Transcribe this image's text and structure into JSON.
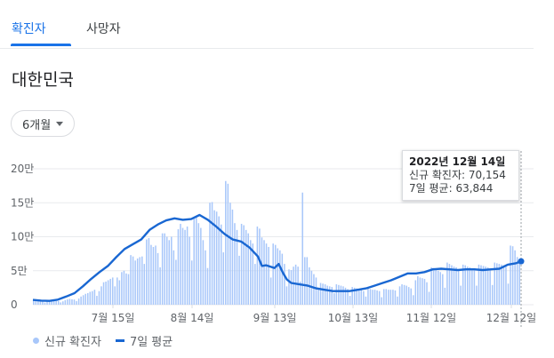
{
  "tabs": [
    {
      "label": "확진자",
      "active": true
    },
    {
      "label": "사망자",
      "active": false
    }
  ],
  "region_title": "대한민국",
  "range_select": {
    "label": "6개월"
  },
  "tooltip": {
    "date": "2022년 12월 14일",
    "new_cases_label": "신규 확진자",
    "new_cases_value": "70,154",
    "avg_label": "7일 평균",
    "avg_value": "63,844"
  },
  "legend": {
    "bars": "신규 확진자",
    "line": "7일 평균"
  },
  "colors": {
    "bar": "#a8c7fa",
    "line": "#1967d2",
    "accent": "#1a73e8"
  },
  "chart_data": {
    "type": "bar",
    "x_tick_labels": [
      "7월 15일",
      "8월 14일",
      "9월 13일",
      "10월 13일",
      "11월 12일",
      "12월 12일"
    ],
    "y_tick_labels": [
      "0",
      "5만",
      "10만",
      "15만",
      "20만"
    ],
    "ylim": [
      0,
      200000
    ],
    "grid": true,
    "legend_position": "bottom-left",
    "series": [
      {
        "name": "신규 확진자",
        "kind": "bar",
        "values": [
          6500,
          6000,
          5500,
          5200,
          5000,
          3100,
          4800,
          6200,
          6100,
          5700,
          5500,
          5300,
          3400,
          4900,
          6700,
          7800,
          8500,
          8000,
          7600,
          5200,
          9000,
          12000,
          14000,
          16000,
          17000,
          19000,
          20000,
          22000,
          13000,
          20000,
          27000,
          33000,
          34000,
          36000,
          38000,
          40000,
          27000,
          40000,
          36000,
          48000,
          50000,
          46000,
          45000,
          73000,
          71000,
          65000,
          68000,
          70000,
          71000,
          60000,
          96000,
          98000,
          88000,
          85000,
          87000,
          76000,
          55000,
          105000,
          105000,
          100000,
          95000,
          100000,
          80000,
          66000,
          111000,
          119000,
          113000,
          110000,
          115000,
          100000,
          65000,
          128000,
          130000,
          120000,
          113000,
          95000,
          80000,
          54000,
          150000,
          151000,
          139000,
          137000,
          130000,
          118000,
          77000,
          182000,
          178000,
          150000,
          140000,
          120000,
          110000,
          72000,
          119000,
          117000,
          110000,
          105000,
          95000,
          90000,
          60000,
          115000,
          112000,
          99000,
          95000,
          90000,
          85000,
          40000,
          90000,
          88000,
          83000,
          80000,
          75000,
          60000,
          27000,
          52000,
          51000,
          56000,
          59000,
          56000,
          34000,
          165000,
          70000,
          70000,
          55000,
          50000,
          45000,
          40000,
          25000,
          32000,
          31000,
          30000,
          28000,
          27000,
          26000,
          17000,
          30000,
          29000,
          28000,
          27000,
          25000,
          23000,
          13000,
          26000,
          25000,
          24000,
          23000,
          22000,
          20000,
          12000,
          24000,
          23000,
          22000,
          22000,
          21000,
          20000,
          11000,
          23000,
          23000,
          22000,
          22000,
          22000,
          21000,
          12000,
          27000,
          30000,
          29000,
          28000,
          26000,
          24000,
          14000,
          36000,
          42000,
          40000,
          39000,
          38000,
          33000,
          19000,
          55000,
          54000,
          52000,
          50000,
          48000,
          45000,
          25000,
          62000,
          60000,
          58000,
          56000,
          55000,
          52000,
          28000,
          59000,
          58000,
          56000,
          55000,
          53000,
          52000,
          28000,
          59000,
          58000,
          57000,
          56000,
          55000,
          52000,
          29000,
          62000,
          61000,
          60000,
          59000,
          58000,
          56000,
          31000,
          87000,
          86000,
          80000,
          70154,
          65000
        ]
      },
      {
        "name": "7일 평균",
        "kind": "line",
        "points": [
          [
            0,
            7000
          ],
          [
            10,
            6000
          ],
          [
            20,
            5600
          ],
          [
            30,
            7500
          ],
          [
            40,
            12000
          ],
          [
            50,
            17000
          ],
          [
            60,
            27000
          ],
          [
            70,
            38000
          ],
          [
            80,
            48000
          ],
          [
            90,
            57000
          ],
          [
            100,
            70000
          ],
          [
            110,
            82000
          ],
          [
            120,
            89000
          ],
          [
            130,
            96000
          ],
          [
            140,
            110000
          ],
          [
            150,
            118000
          ],
          [
            160,
            124000
          ],
          [
            170,
            127000
          ],
          [
            180,
            125000
          ],
          [
            190,
            126000
          ],
          [
            200,
            132000
          ],
          [
            210,
            125000
          ],
          [
            220,
            115000
          ],
          [
            230,
            104000
          ],
          [
            240,
            96000
          ],
          [
            250,
            93000
          ],
          [
            260,
            84000
          ],
          [
            270,
            71000
          ],
          [
            275,
            57000
          ],
          [
            280,
            58000
          ],
          [
            290,
            54000
          ],
          [
            295,
            60000
          ],
          [
            300,
            47000
          ],
          [
            305,
            37000
          ],
          [
            310,
            32000
          ],
          [
            320,
            30000
          ],
          [
            330,
            28000
          ],
          [
            340,
            24000
          ],
          [
            350,
            22000
          ],
          [
            360,
            20000
          ],
          [
            370,
            20000
          ],
          [
            380,
            20000
          ],
          [
            390,
            22000
          ],
          [
            400,
            24000
          ],
          [
            410,
            28000
          ],
          [
            420,
            32000
          ],
          [
            430,
            36000
          ],
          [
            440,
            41000
          ],
          [
            450,
            46000
          ],
          [
            460,
            46000
          ],
          [
            470,
            48000
          ],
          [
            480,
            52000
          ],
          [
            490,
            53000
          ],
          [
            500,
            52000
          ],
          [
            510,
            51000
          ],
          [
            520,
            52000
          ],
          [
            530,
            52000
          ],
          [
            540,
            51000
          ],
          [
            550,
            52000
          ],
          [
            560,
            53000
          ],
          [
            570,
            59000
          ],
          [
            580,
            61000
          ],
          [
            586,
            63844
          ]
        ]
      }
    ]
  }
}
